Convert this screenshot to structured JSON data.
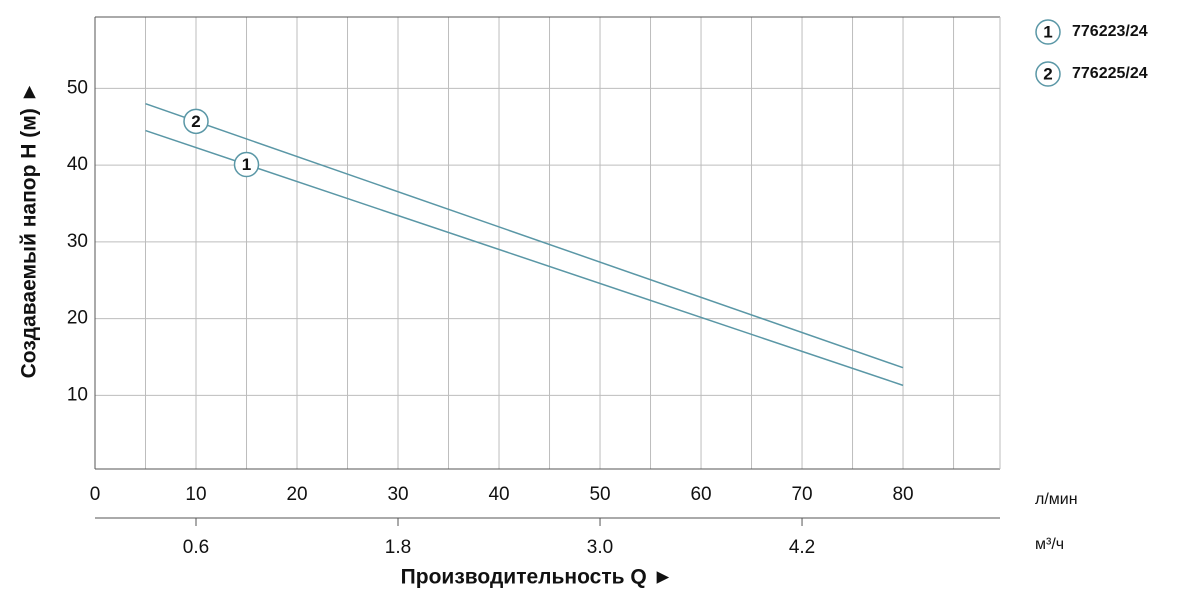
{
  "chart_data": {
    "type": "line",
    "y_label": "Создаваемый напор Н (м) ►",
    "x_label": "Производительность Q ►",
    "x_unit": "л/мин",
    "x2_unit": "м³/ч",
    "xlim": [
      0,
      89.6
    ],
    "xticks": [
      0,
      10,
      20,
      30,
      40,
      50,
      60,
      70,
      80
    ],
    "x2lim": [
      0,
      5.376
    ],
    "x2ticks": [
      0.6,
      1.8,
      {
        "value": 3,
        "label": "3.0"
      },
      4.2
    ],
    "ylim": [
      0.4,
      59.3
    ],
    "yticks": [
      10,
      20,
      30,
      40,
      50
    ],
    "grid": true,
    "series": [
      {
        "name": "776223/24",
        "marker": "1",
        "color": "#5a97a6",
        "x": [
          5,
          80
        ],
        "values": [
          44.5,
          11.3
        ]
      },
      {
        "name": "776225/24",
        "marker": "2",
        "color": "#5a97a6",
        "x": [
          5,
          80
        ],
        "values": [
          48,
          13.6
        ]
      }
    ]
  }
}
